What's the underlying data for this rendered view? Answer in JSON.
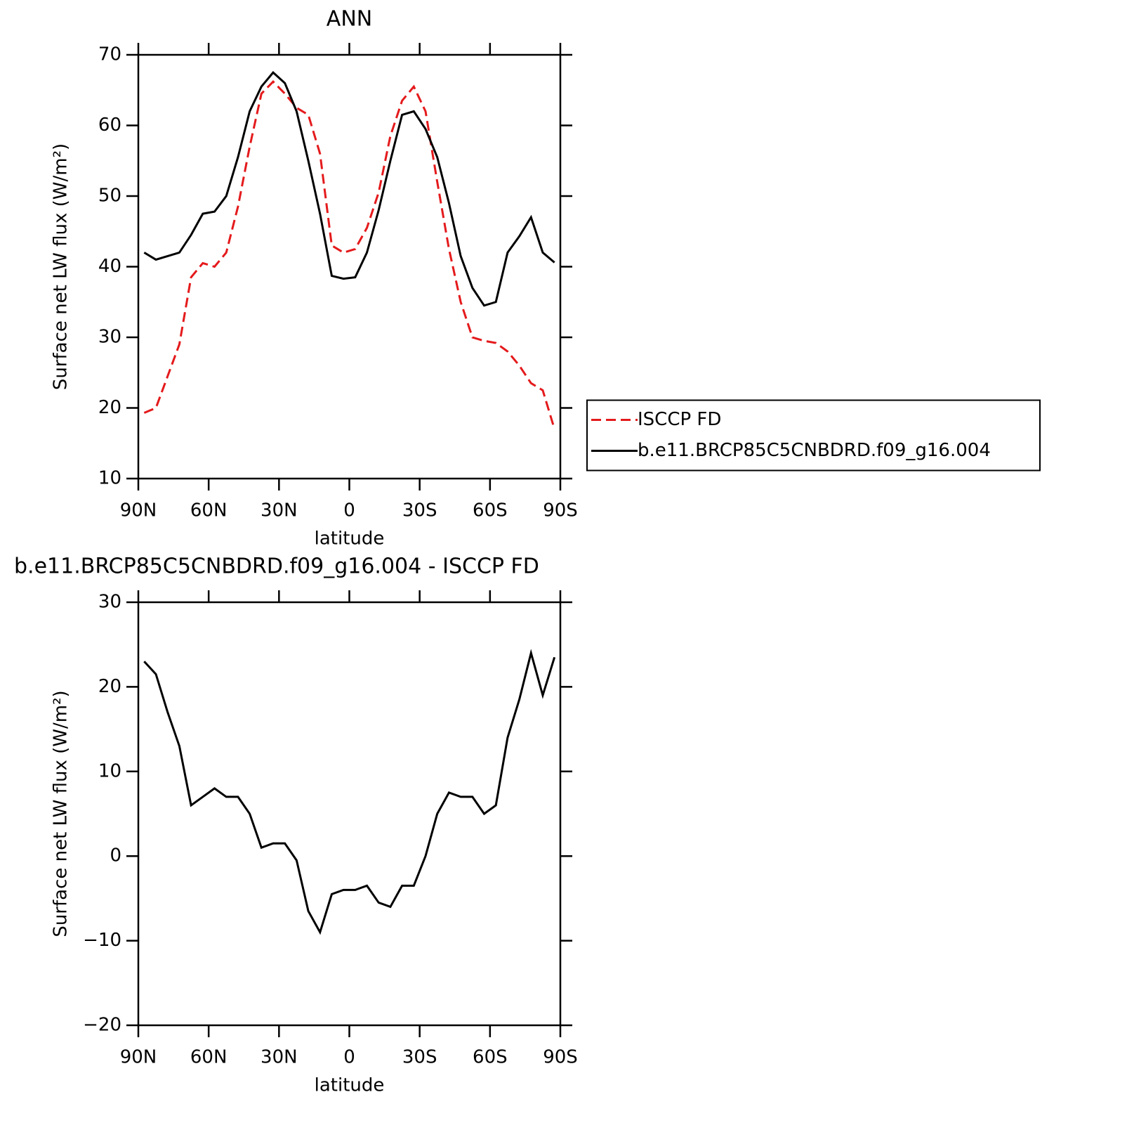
{
  "chart_data": [
    {
      "type": "line",
      "title": "ANN",
      "xlabel": "latitude",
      "ylabel": "Surface net LW flux (W/m²)",
      "x": [
        87.5,
        82.5,
        77.5,
        72.5,
        67.5,
        62.5,
        57.5,
        52.5,
        47.5,
        42.5,
        37.5,
        32.5,
        27.5,
        22.5,
        17.5,
        12.5,
        7.5,
        2.5,
        -2.5,
        -7.5,
        -12.5,
        -17.5,
        -22.5,
        -27.5,
        -32.5,
        -37.5,
        -42.5,
        -47.5,
        -52.5,
        -57.5,
        -62.5,
        -67.5,
        -72.5,
        -77.5,
        -82.5,
        -87.5
      ],
      "series": [
        {
          "name": "ISCCP FD",
          "color": "#e41a1c",
          "linestyle": "dashed",
          "values": [
            19.3,
            20,
            24.5,
            29,
            38.5,
            40.5,
            40,
            42,
            48.5,
            57,
            64.5,
            66.2,
            64.5,
            62.5,
            61.5,
            56,
            43,
            42,
            42.5,
            45.5,
            50.5,
            58.5,
            63.5,
            65.5,
            62,
            52,
            42.5,
            35,
            30,
            29.5,
            29.2,
            28,
            26,
            23.5,
            22.5,
            17
          ]
        },
        {
          "name": "b.e11.BRCP85C5CNBDRD.f09_g16.004",
          "color": "#000000",
          "linestyle": "solid",
          "values": [
            42,
            41,
            41.5,
            42,
            44.5,
            47.5,
            47.8,
            50,
            55.5,
            62,
            65.5,
            67.5,
            66,
            62,
            55,
            47.5,
            38.7,
            38.3,
            38.5,
            42,
            48,
            55,
            61.5,
            62,
            59.5,
            55.5,
            49,
            41.5,
            37,
            34.5,
            35,
            42,
            44.3,
            47,
            42,
            40.6
          ]
        }
      ],
      "xlim": [
        90,
        -90
      ],
      "xticks": [
        {
          "value": 90,
          "label": "90N"
        },
        {
          "value": 60,
          "label": "60N"
        },
        {
          "value": 30,
          "label": "30N"
        },
        0,
        {
          "value": -30,
          "label": "30S"
        },
        {
          "value": -60,
          "label": "60S"
        },
        {
          "value": -90,
          "label": "90S"
        }
      ],
      "ylim": [
        10,
        70
      ],
      "yticks": [
        10,
        20,
        30,
        40,
        50,
        60,
        70
      ],
      "legend": "right"
    },
    {
      "type": "line",
      "title": "b.e11.BRCP85C5CNBDRD.f09_g16.004 - ISCCP FD",
      "xlabel": "latitude",
      "ylabel": "Surface net LW flux (W/m²)",
      "x": [
        87.5,
        82.5,
        77.5,
        72.5,
        67.5,
        62.5,
        57.5,
        52.5,
        47.5,
        42.5,
        37.5,
        32.5,
        27.5,
        22.5,
        17.5,
        12.5,
        7.5,
        2.5,
        -2.5,
        -7.5,
        -12.5,
        -17.5,
        -22.5,
        -27.5,
        -32.5,
        -37.5,
        -42.5,
        -47.5,
        -52.5,
        -57.5,
        -62.5,
        -67.5,
        -72.5,
        -77.5,
        -82.5,
        -87.5
      ],
      "color": "#000000",
      "values": [
        23,
        21.5,
        17,
        13,
        6,
        7,
        8,
        7,
        7,
        5,
        1,
        1.5,
        1.5,
        -0.5,
        -6.5,
        -9,
        -4.5,
        -4,
        -4,
        -3.5,
        -5.5,
        -6,
        -3.5,
        -3.5,
        0,
        5,
        7.5,
        7,
        7,
        5,
        6,
        14,
        18.5,
        24,
        19,
        23.5
      ],
      "xlim": [
        90,
        -90
      ],
      "xticks": [
        {
          "value": 90,
          "label": "90N"
        },
        {
          "value": 60,
          "label": "60N"
        },
        {
          "value": 30,
          "label": "30N"
        },
        0,
        {
          "value": -30,
          "label": "30S"
        },
        {
          "value": -60,
          "label": "60S"
        },
        {
          "value": -90,
          "label": "90S"
        }
      ],
      "ylim": [
        -20,
        30
      ],
      "yticks": [
        {
          "value": -20,
          "label": "−20"
        },
        {
          "value": -10,
          "label": "−10"
        },
        0,
        10,
        20,
        30
      ]
    }
  ]
}
